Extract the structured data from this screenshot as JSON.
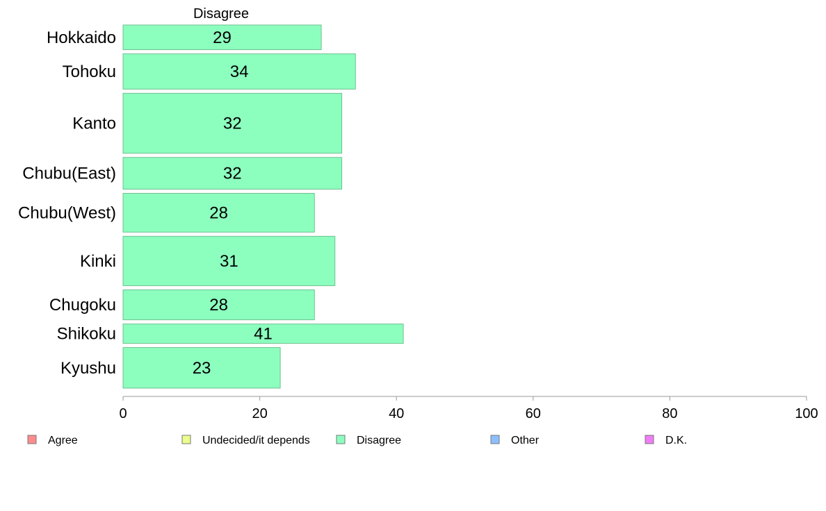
{
  "chart_data": {
    "type": "bar",
    "orientation": "horizontal",
    "stacked": true,
    "title": "",
    "panel_title": "Disagree",
    "categories": [
      "Hokkaido",
      "Tohoku",
      "Kanto",
      "Chubu(East)",
      "Chubu(West)",
      "Kinki",
      "Chugoku",
      "Shikoku",
      "Kyushu"
    ],
    "category_weights": [
      1.4,
      2.0,
      3.4,
      1.8,
      2.2,
      2.8,
      1.7,
      1.1,
      2.3
    ],
    "series": [
      {
        "name": "Disagree",
        "color": "#8cffbf",
        "values": [
          29,
          34,
          32,
          32,
          28,
          31,
          28,
          41,
          23
        ]
      }
    ],
    "xlim": [
      0,
      100
    ],
    "xticks": [
      0,
      20,
      40,
      60,
      80,
      100
    ],
    "grid": false,
    "legend": {
      "position": "bottom",
      "items": [
        {
          "label": "Agree",
          "color": "#ff8c8c"
        },
        {
          "label": "Undecided/it depends",
          "color": "#eaff8c"
        },
        {
          "label": "Disagree",
          "color": "#8cffbf"
        },
        {
          "label": "Other",
          "color": "#8cbfff"
        },
        {
          "label": "D.K.",
          "color": "#ef7df7"
        }
      ]
    }
  }
}
